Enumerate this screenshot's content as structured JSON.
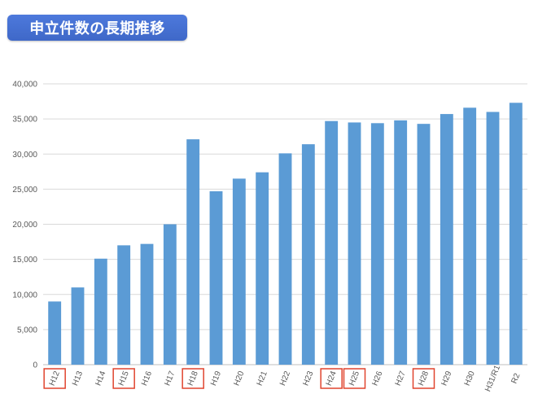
{
  "header": {
    "title": "申立件数の長期推移"
  },
  "chart_data": {
    "type": "bar",
    "title": "",
    "xlabel": "",
    "ylabel": "",
    "ylim": [
      0,
      40000
    ],
    "y_ticks": [
      0,
      5000,
      10000,
      15000,
      20000,
      25000,
      30000,
      35000,
      40000
    ],
    "y_tick_labels": [
      "0",
      "5,000",
      "10,000",
      "15,000",
      "20,000",
      "25,000",
      "30,000",
      "35,000",
      "40,000"
    ],
    "grid": "horizontal",
    "categories": [
      "H12",
      "H13",
      "H14",
      "H15",
      "H16",
      "H17",
      "H18",
      "H19",
      "H20",
      "H21",
      "H22",
      "H23",
      "H24",
      "H25",
      "H26",
      "H27",
      "H28",
      "H29",
      "H30",
      "H31/R1",
      "R2"
    ],
    "values": [
      9000,
      11000,
      15100,
      17000,
      17200,
      20000,
      32100,
      24700,
      26500,
      27400,
      30100,
      31400,
      34700,
      34500,
      34400,
      34800,
      34300,
      35700,
      36600,
      36000,
      37300
    ],
    "highlighted_categories": [
      "H12",
      "H15",
      "H18",
      "H24",
      "H25",
      "H28"
    ],
    "colors": {
      "bar": "#5b9bd5",
      "highlight_box": "#e0442e",
      "grid": "#d9d9d9"
    }
  }
}
